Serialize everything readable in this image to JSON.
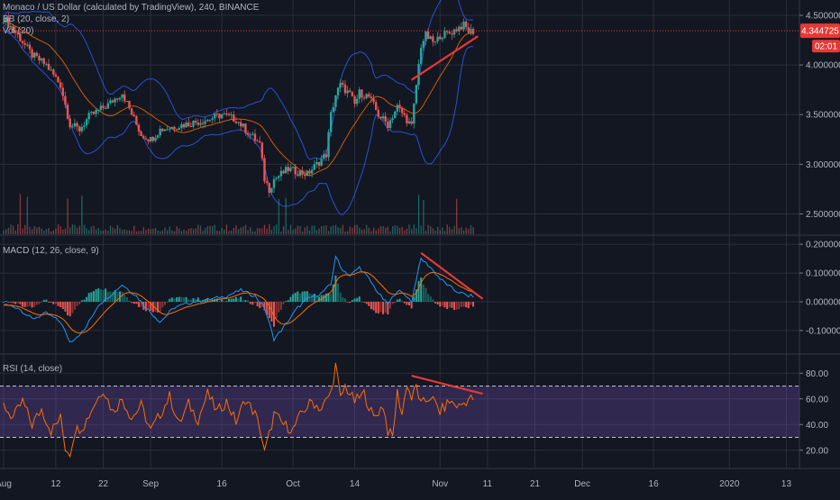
{
  "header": {
    "title": "Monaco / US Dollar (calculated by TradingView), 240, BINANCE",
    "bb_label": "BB (20, close, 2)",
    "vol_label": "Vol (20)"
  },
  "price_badge": {
    "value": "4.344725",
    "countdown": "02:01",
    "color": "#e53935"
  },
  "macd_label": "MACD (12, 26, close, 9)",
  "rsi_label": "RSI (14, close)",
  "colors": {
    "background": "#131722",
    "grid": "#2a2e39",
    "text": "#b2b5be",
    "up": "#26a69a",
    "down": "#ef5350",
    "bb": "#2962ff",
    "bb_basis": "#ff6d00",
    "macd_line": "#2196f3",
    "signal_line": "#ff6d00",
    "rsi": "#ff6d00",
    "rsi_band": "#7e57c2",
    "trendline": "#e53935"
  },
  "chart_data": [
    {
      "type": "candlestick",
      "pane": "price",
      "y_ticks": [
        "4.500000",
        "4.000000",
        "3.500000",
        "3.000000",
        "2.500000"
      ],
      "ylim": [
        2.35,
        4.6
      ],
      "last_price": 4.344725,
      "x_ticks": [
        {
          "label": "Aug",
          "x": 0
        },
        {
          "label": "12",
          "x": 11
        },
        {
          "label": "22",
          "x": 21
        },
        {
          "label": "Sep",
          "x": 31
        },
        {
          "label": "16",
          "x": 46
        },
        {
          "label": "Oct",
          "x": 61
        },
        {
          "label": "14",
          "x": 74
        },
        {
          "label": "Nov",
          "x": 92
        },
        {
          "label": "11",
          "x": 102
        },
        {
          "label": "21",
          "x": 112
        },
        {
          "label": "Dec",
          "x": 122
        },
        {
          "label": "16",
          "x": 137
        },
        {
          "label": "2020",
          "x": 153
        },
        {
          "label": "13",
          "x": 165
        }
      ],
      "xlim": [
        0,
        167
      ],
      "data_end_x": 99,
      "path_x": [
        0,
        3,
        6,
        9,
        12,
        14,
        16,
        18,
        22,
        25,
        28,
        29,
        31,
        33,
        36,
        40,
        43,
        46,
        49,
        52,
        54,
        55,
        56,
        57,
        60,
        64,
        66,
        68,
        69,
        70,
        71,
        72,
        73,
        74,
        75,
        77,
        79,
        81,
        83,
        85,
        86,
        87,
        88,
        89,
        90,
        91,
        92,
        94,
        96,
        97,
        98
      ],
      "path_close": [
        4.47,
        4.3,
        4.1,
        4.0,
        3.8,
        3.4,
        3.35,
        3.48,
        3.6,
        3.72,
        3.4,
        3.3,
        3.25,
        3.35,
        3.38,
        3.42,
        3.45,
        3.5,
        3.45,
        3.3,
        3.2,
        2.85,
        2.75,
        2.85,
        2.95,
        2.9,
        3.0,
        3.1,
        3.5,
        3.7,
        3.8,
        3.75,
        3.7,
        3.6,
        3.72,
        3.68,
        3.5,
        3.4,
        3.58,
        3.45,
        3.38,
        3.8,
        4.2,
        4.3,
        4.25,
        4.22,
        4.3,
        4.32,
        4.38,
        4.4,
        4.34
      ],
      "trendline": {
        "x": [
          86,
          100
        ],
        "y": [
          3.85,
          4.29
        ]
      }
    },
    {
      "type": "line",
      "pane": "macd",
      "y_ticks": [
        "0.200000",
        "0.100000",
        "0.000000",
        "-0.100000"
      ],
      "ylim": [
        -0.16,
        0.21
      ],
      "path_x": [
        0,
        3,
        6,
        9,
        12,
        14,
        17,
        20,
        23,
        25,
        28,
        30,
        33,
        36,
        40,
        44,
        47,
        50,
        53,
        55,
        57,
        59,
        62,
        64,
        67,
        69,
        70,
        71,
        73,
        75,
        77,
        79,
        81,
        83,
        85,
        86,
        87,
        88,
        90,
        92,
        95,
        98
      ],
      "path_macd": [
        -0.01,
        -0.02,
        -0.06,
        -0.04,
        -0.07,
        -0.14,
        -0.1,
        -0.01,
        0.03,
        0.06,
        0.02,
        -0.02,
        -0.07,
        -0.02,
        0.0,
        0.01,
        0.02,
        0.04,
        0.02,
        -0.02,
        -0.13,
        -0.09,
        -0.02,
        0.01,
        0.03,
        0.06,
        0.16,
        0.12,
        0.09,
        0.12,
        0.08,
        0.03,
        -0.01,
        0.04,
        0.02,
        0.0,
        0.08,
        0.15,
        0.12,
        0.08,
        0.04,
        0.02
      ],
      "trendline": {
        "x": [
          88,
          101
        ],
        "y": [
          0.17,
          0.01
        ]
      }
    },
    {
      "type": "line",
      "pane": "rsi",
      "y_ticks": [
        "80.00",
        "60.00",
        "40.00",
        "20.00"
      ],
      "ylim": [
        10,
        90
      ],
      "band": [
        30,
        70
      ],
      "path_x": [
        0,
        2,
        4,
        6,
        8,
        10,
        12,
        13,
        14,
        15,
        17,
        19,
        21,
        23,
        25,
        27,
        29,
        31,
        33,
        35,
        37,
        39,
        41,
        43,
        45,
        47,
        49,
        51,
        53,
        54,
        55,
        56,
        57,
        59,
        61,
        63,
        65,
        67,
        69,
        70,
        71,
        72,
        74,
        76,
        78,
        80,
        81,
        82,
        83,
        84,
        85,
        86,
        87,
        88,
        90,
        92,
        94,
        96,
        98
      ],
      "path_rsi": [
        55,
        45,
        58,
        40,
        52,
        35,
        45,
        22,
        18,
        35,
        40,
        55,
        68,
        50,
        60,
        45,
        55,
        35,
        48,
        62,
        40,
        56,
        44,
        64,
        50,
        58,
        42,
        60,
        48,
        38,
        18,
        32,
        48,
        40,
        36,
        50,
        58,
        52,
        65,
        86,
        60,
        70,
        58,
        64,
        45,
        55,
        35,
        30,
        65,
        48,
        72,
        60,
        70,
        55,
        62,
        50,
        58,
        54,
        60
      ],
      "trendline": {
        "x": [
          86,
          101
        ],
        "y": [
          78,
          64
        ]
      }
    }
  ]
}
